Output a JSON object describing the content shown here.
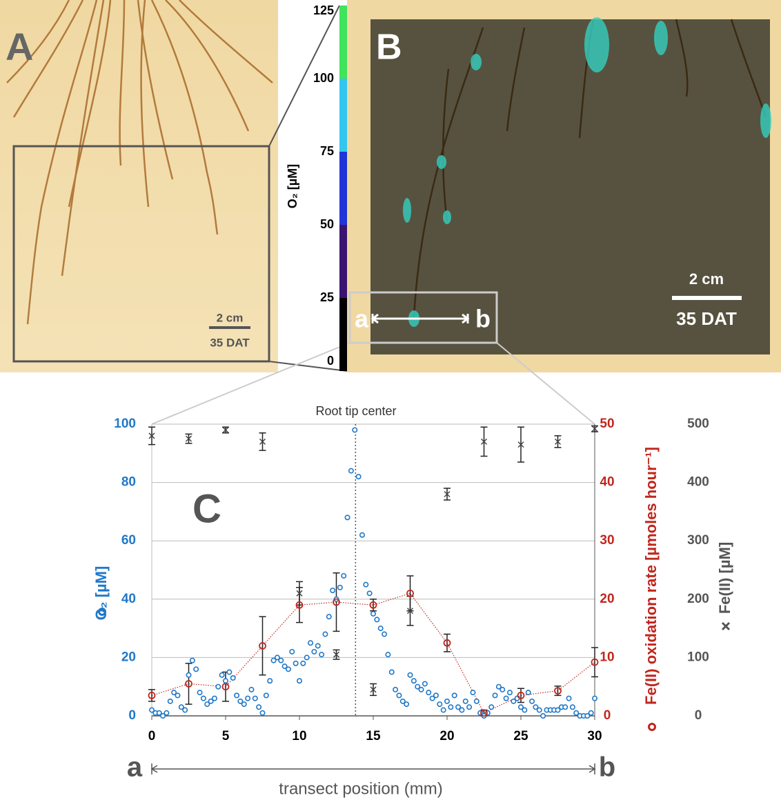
{
  "panel_a": {
    "label": "A",
    "scale_bar": "2 cm",
    "dat": "35 DAT"
  },
  "colorbar": {
    "label": "O₂ [µM]",
    "lim": [
      0,
      125
    ],
    "ticks": [
      0,
      25,
      50,
      75,
      100,
      125
    ],
    "colors": [
      "#000000",
      "#3a1470",
      "#2035d8",
      "#33c6ef",
      "#3fe35c"
    ]
  },
  "panel_b": {
    "label": "B",
    "scale_bar": "2 cm",
    "dat": "35 DAT",
    "transect_start": "a",
    "transect_end": "b"
  },
  "chart_data": {
    "type": "scatter",
    "panel_label": "C",
    "annotation": "Root tip center",
    "annotation_x": 13.8,
    "xlabel": "transect position (mm)",
    "x_start_label": "a",
    "x_end_label": "b",
    "xlim": [
      0,
      30
    ],
    "xticks": [
      0,
      5,
      10,
      15,
      20,
      25,
      30
    ],
    "ylim": [
      0,
      100
    ],
    "yticks": [
      0,
      20,
      40,
      60,
      80,
      100
    ],
    "y2lim": [
      0,
      50
    ],
    "y2ticks": [
      0,
      10,
      20,
      30,
      40,
      50
    ],
    "y3lim": [
      0,
      500
    ],
    "y3ticks": [
      0,
      100,
      200,
      300,
      400,
      500
    ],
    "grid": true,
    "series": [
      {
        "name": "O₂ [µM]",
        "color": "#1f78c8",
        "axis": "y",
        "x": [
          0,
          0.25,
          0.5,
          0.75,
          1,
          1.25,
          1.5,
          1.75,
          2,
          2.25,
          2.5,
          2.75,
          3,
          3.25,
          3.5,
          3.75,
          4,
          4.25,
          4.5,
          4.75,
          5,
          5.25,
          5.5,
          5.75,
          6,
          6.25,
          6.5,
          6.75,
          7,
          7.25,
          7.5,
          7.75,
          8,
          8.25,
          8.5,
          8.75,
          9,
          9.25,
          9.5,
          9.75,
          10,
          10.25,
          10.5,
          10.75,
          11,
          11.25,
          11.5,
          11.75,
          12,
          12.25,
          12.5,
          12.75,
          13,
          13.25,
          13.5,
          13.75,
          14,
          14.25,
          14.5,
          14.75,
          15,
          15.25,
          15.5,
          15.75,
          16,
          16.25,
          16.5,
          16.75,
          17,
          17.25,
          17.5,
          17.75,
          18,
          18.25,
          18.5,
          18.75,
          19,
          19.25,
          19.5,
          19.75,
          20,
          20.25,
          20.5,
          20.75,
          21,
          21.25,
          21.5,
          21.75,
          22,
          22.25,
          22.5,
          22.75,
          23,
          23.25,
          23.5,
          23.75,
          24,
          24.25,
          24.5,
          24.75,
          25,
          25.25,
          25.5,
          25.75,
          26,
          26.25,
          26.5,
          26.75,
          27,
          27.25,
          27.5,
          27.75,
          28,
          28.25,
          28.5,
          28.75,
          29,
          29.25,
          29.5,
          29.75,
          30
        ],
        "values": [
          2,
          1,
          1,
          0,
          1,
          5,
          8,
          7,
          3,
          2,
          14,
          19,
          16,
          8,
          6,
          4,
          5,
          6,
          10,
          14,
          12,
          15,
          13,
          7,
          5,
          4,
          6,
          9,
          6,
          3,
          1,
          7,
          12,
          19,
          20,
          19,
          17,
          16,
          22,
          18,
          12,
          18,
          20,
          25,
          22,
          24,
          21,
          28,
          34,
          43,
          40,
          44,
          48,
          68,
          84,
          98,
          82,
          62,
          45,
          42,
          35,
          33,
          30,
          28,
          21,
          15,
          9,
          7,
          5,
          4,
          14,
          12,
          10,
          9,
          11,
          8,
          6,
          7,
          4,
          2,
          5,
          3,
          7,
          3,
          2,
          5,
          3,
          8,
          5,
          1,
          0,
          1,
          3,
          7,
          10,
          9,
          6,
          8,
          5,
          6,
          3,
          2,
          8,
          5,
          3,
          2,
          0,
          2,
          2,
          2,
          2,
          3,
          3,
          6,
          3,
          1,
          0,
          0,
          0,
          1,
          6
        ]
      },
      {
        "name": "Fe(II) oxidation rate [µmoles hour⁻¹]",
        "color": "#c0261c",
        "axis": "y2",
        "x": [
          0,
          2.5,
          5,
          7.5,
          10,
          12.5,
          15,
          17.5,
          20,
          22.5,
          25,
          27.5,
          30
        ],
        "values": [
          3.5,
          5.5,
          5,
          12,
          19,
          19.5,
          19,
          21,
          12.5,
          0.5,
          3.5,
          4.3,
          9.2
        ],
        "errors": [
          1,
          3.5,
          2.5,
          5,
          3,
          5,
          1,
          3,
          1.5,
          0.5,
          1.2,
          0.8,
          2.5
        ]
      },
      {
        "name": "Fe(II) [µM]",
        "color": "#444444",
        "axis": "y3",
        "x": [
          0,
          2.5,
          5,
          7.5,
          10,
          12.5,
          15,
          17.5,
          20,
          22.5,
          25,
          27.5,
          30
        ],
        "values": [
          480,
          475,
          490,
          470,
          210,
          105,
          45,
          180,
          380,
          470,
          465,
          470,
          492
        ],
        "errors": [
          15,
          8,
          5,
          15,
          20,
          8,
          10,
          25,
          10,
          25,
          30,
          10,
          5
        ]
      }
    ]
  }
}
